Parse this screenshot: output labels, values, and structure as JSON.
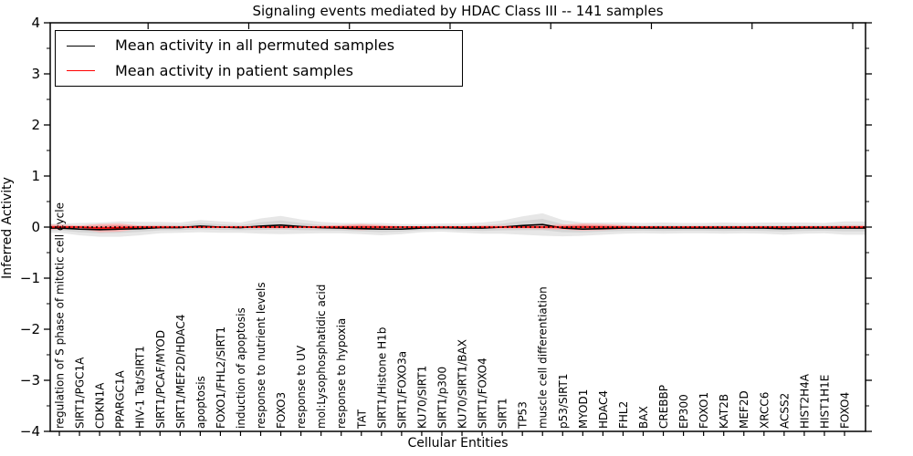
{
  "title": "Signaling events mediated by HDAC Class III -- 141 samples",
  "ylabel": "Inferred Activity",
  "xlabel": "Cellular Entities",
  "legend": {
    "items": [
      {
        "label": "Mean activity in all permuted samples",
        "color": "#000000"
      },
      {
        "label": "Mean activity in patient samples",
        "color": "#ff0000"
      }
    ],
    "position": "upper left"
  },
  "colors": {
    "permuted_line": "#000000",
    "patient_line": "#ff0000",
    "permuted_band_outer": "#e7e7e7",
    "permuted_band_inner": "#d5d5d5",
    "patient_band_outer": "#f7b2b2",
    "patient_band_inner": "#ef8282",
    "zero_line": "#000000",
    "axis": "#000000"
  },
  "chart_data": {
    "type": "line",
    "title": "Signaling events mediated by HDAC Class III -- 141 samples",
    "xlabel": "Cellular Entities",
    "ylabel": "Inferred Activity",
    "ylim": [
      -4,
      4
    ],
    "yticks": [
      4,
      3,
      2,
      1,
      0,
      -1,
      -2,
      -3,
      -4
    ],
    "ytick_labels": [
      "4",
      "3",
      "2",
      "1",
      "0",
      "−1",
      "−2",
      "−3",
      "−4"
    ],
    "grid": false,
    "legend_position": "upper left",
    "categories": [
      "regulation of S phase of mitotic cell cycle",
      "SIRT1/PGC1A",
      "CDKN1A",
      "PPARGC1A",
      "HIV-1 Tat/SIRT1",
      "SIRT1/PCAF/MYOD",
      "SIRT1/MEF2D/HDAC4",
      "apoptosis",
      "FOXO1/FHL2/SIRT1",
      "induction of apoptosis",
      "response to nutrient levels",
      "FOXO3",
      "response to UV",
      "mol:Lysophosphatidic acid",
      "response to hypoxia",
      "TAT",
      "SIRT1/Histone H1b",
      "SIRT1/FOXO3a",
      "KU70/SIRT1",
      "SIRT1/p300",
      "KU70/SIRT1/BAX",
      "SIRT1/FOXO4",
      "SIRT1",
      "TP53",
      "muscle cell differentiation",
      "p53/SIRT1",
      "MYOD1",
      "HDAC4",
      "FHL2",
      "BAX",
      "CREBBP",
      "EP300",
      "FOXO1",
      "KAT2B",
      "MEF2D",
      "XRCC6",
      "ACSS2",
      "HIST2H4A",
      "HIST1H1E",
      "FOXO4"
    ],
    "series": [
      {
        "name": "Mean activity in all permuted samples",
        "color": "#000000",
        "mean": [
          -0.02,
          -0.04,
          -0.05,
          -0.04,
          -0.03,
          -0.01,
          -0.01,
          0.02,
          0.0,
          -0.01,
          0.02,
          0.04,
          0.01,
          -0.01,
          -0.02,
          -0.03,
          -0.04,
          -0.04,
          -0.02,
          -0.01,
          -0.02,
          -0.02,
          0.0,
          0.03,
          0.05,
          -0.02,
          -0.04,
          -0.03,
          -0.02,
          -0.02,
          -0.02,
          -0.02,
          -0.02,
          -0.02,
          -0.02,
          -0.02,
          -0.03,
          -0.02,
          -0.02,
          -0.02
        ],
        "band_halfwidth": [
          0.09,
          0.12,
          0.14,
          0.15,
          0.13,
          0.11,
          0.1,
          0.12,
          0.11,
          0.1,
          0.15,
          0.18,
          0.14,
          0.11,
          0.1,
          0.11,
          0.12,
          0.1,
          0.08,
          0.08,
          0.09,
          0.11,
          0.13,
          0.18,
          0.22,
          0.16,
          0.13,
          0.12,
          0.11,
          0.1,
          0.11,
          0.1,
          0.1,
          0.11,
          0.1,
          0.11,
          0.12,
          0.11,
          0.1,
          0.13
        ]
      },
      {
        "name": "Mean activity in patient samples",
        "color": "#ff0000",
        "mean": [
          0.0,
          0.0,
          -0.02,
          -0.01,
          0.0,
          0.0,
          0.0,
          0.0,
          0.0,
          0.0,
          0.0,
          0.0,
          0.0,
          0.0,
          0.0,
          0.0,
          0.0,
          0.0,
          0.0,
          0.0,
          0.0,
          0.0,
          0.0,
          0.0,
          0.0,
          0.0,
          0.0,
          0.0,
          0.0,
          0.0,
          0.0,
          0.0,
          0.0,
          0.0,
          0.0,
          0.0,
          0.0,
          0.0,
          0.0,
          0.0
        ],
        "band_halfwidth": [
          0.05,
          0.03,
          0.08,
          0.08,
          0.03,
          0.03,
          0.02,
          0.02,
          0.02,
          0.02,
          0.02,
          0.03,
          0.02,
          0.03,
          0.04,
          0.06,
          0.04,
          0.02,
          0.02,
          0.02,
          0.02,
          0.03,
          0.03,
          0.03,
          0.04,
          0.05,
          0.07,
          0.06,
          0.04,
          0.02,
          0.02,
          0.02,
          0.02,
          0.02,
          0.02,
          0.02,
          0.02,
          0.02,
          0.02,
          0.03
        ]
      }
    ],
    "zero_reference_line": 0
  }
}
